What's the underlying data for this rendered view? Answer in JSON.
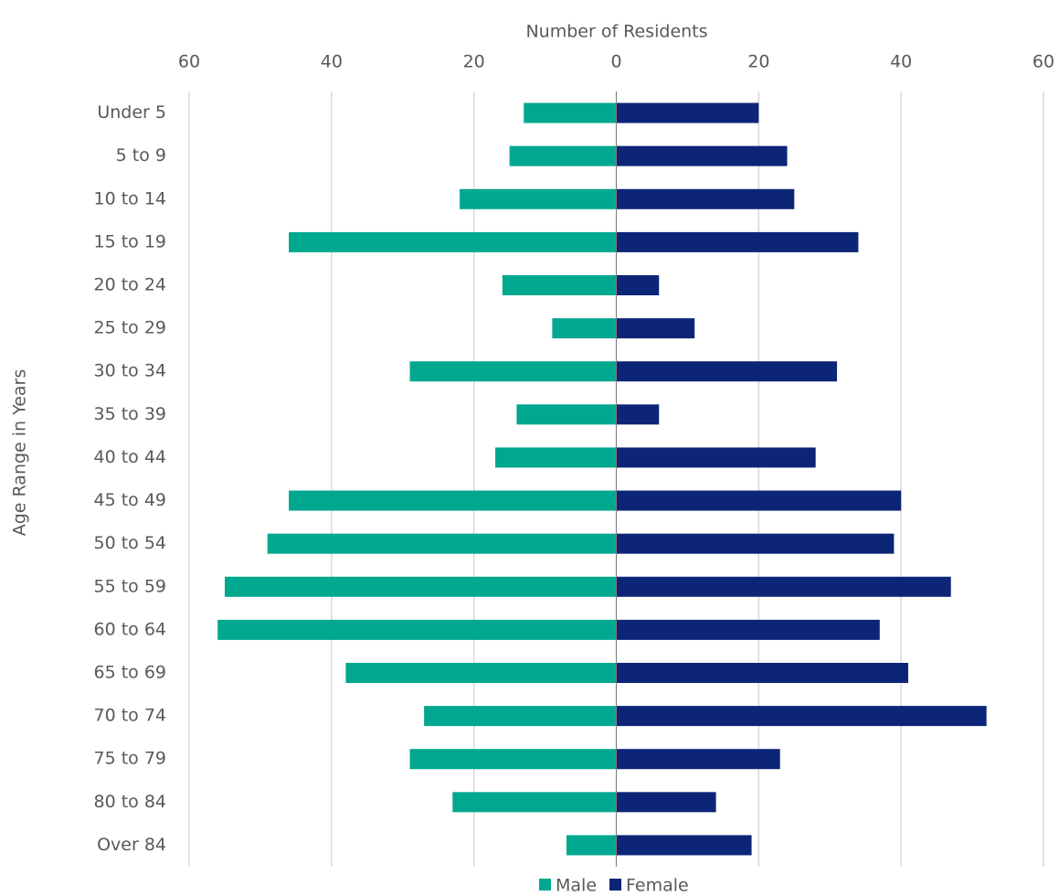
{
  "chart_data": {
    "type": "pyramid",
    "x_label": "Number of Residents",
    "y_label": "Age Range in Years",
    "categories": [
      "Under 5",
      "5 to 9",
      "10 to 14",
      "15 to 19",
      "20 to 24",
      "25 to 29",
      "30 to 34",
      "35 to 39",
      "40 to 44",
      "45 to 49",
      "50 to 54",
      "55 to 59",
      "60 to 64",
      "65 to 69",
      "70 to 74",
      "75 to 79",
      "80 to 84",
      "Over 84"
    ],
    "series": [
      {
        "name": "Male",
        "color": "#00a88f",
        "values": [
          -13,
          -15,
          -22,
          -46,
          -16,
          -9,
          -29,
          -14,
          -17,
          -46,
          -49,
          -55,
          -56,
          -38,
          -27,
          -29,
          -23,
          -7
        ]
      },
      {
        "name": "Female",
        "color": "#0c2577",
        "values": [
          20,
          24,
          25,
          34,
          6,
          11,
          31,
          6,
          28,
          40,
          39,
          47,
          37,
          41,
          52,
          23,
          14,
          19
        ]
      }
    ],
    "xlim": [
      -60,
      60
    ],
    "xticks": [
      {
        "value": -60,
        "label": "60"
      },
      {
        "value": -40,
        "label": "40"
      },
      {
        "value": -20,
        "label": "20"
      },
      0,
      20,
      40,
      60
    ],
    "grid": true,
    "legend": "bottom"
  }
}
